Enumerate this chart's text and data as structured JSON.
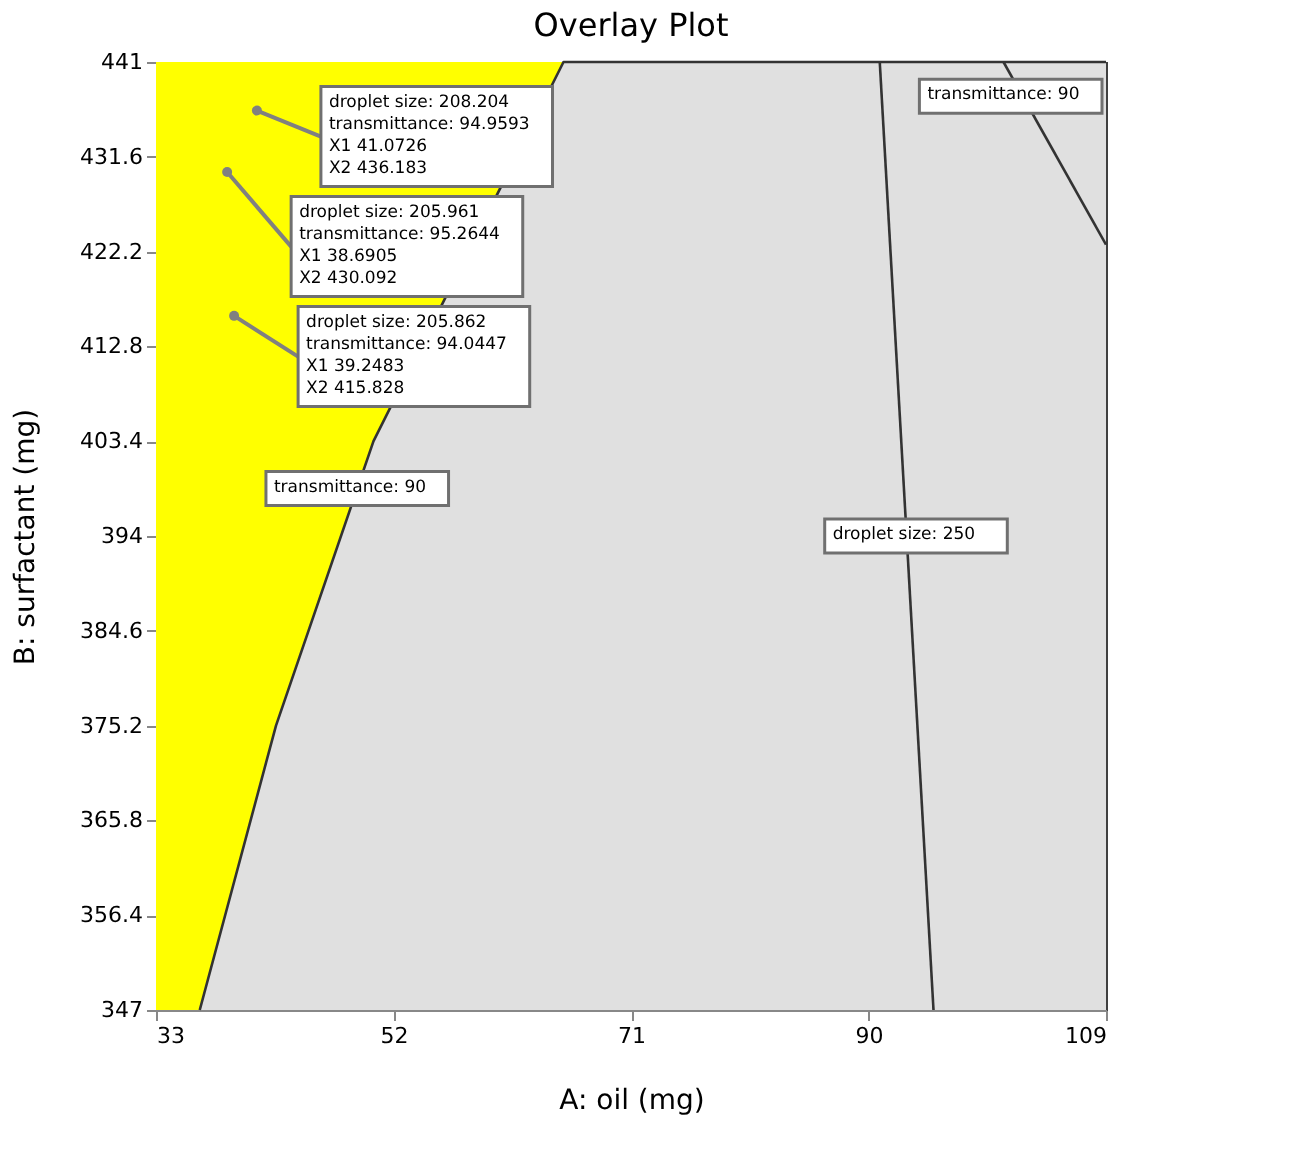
{
  "chart_data": {
    "type": "area",
    "title": "Overlay Plot",
    "xlabel": "A: oil (mg)",
    "ylabel": "B: surfactant (mg)",
    "xlim": [
      33,
      109
    ],
    "ylim": [
      347,
      441
    ],
    "xticks": [
      33,
      52,
      71,
      90,
      109
    ],
    "yticks": [
      347,
      356.4,
      365.8,
      375.2,
      384.6,
      394,
      403.4,
      412.8,
      422.2,
      431.6,
      441
    ],
    "grid": false,
    "bands": [
      {
        "axis": "x",
        "from": 33,
        "to": 109,
        "color": "#ffff00"
      }
    ],
    "series": [
      {
        "type": "area",
        "color": "#e0e0e0",
        "x": [
          36.5,
          42.6,
          50.4,
          65.6,
          109
        ],
        "values": [
          347,
          375.2,
          403.4,
          441,
          441
        ]
      },
      {
        "type": "line",
        "color": "#333333",
        "x": [
          100.8,
          109
        ],
        "values": [
          441,
          422.9
        ]
      },
      {
        "type": "line",
        "color": "#333333",
        "x": [
          90.9,
          95.2
        ],
        "values": [
          441,
          347
        ]
      },
      {
        "type": "scatter",
        "color": "#808080",
        "x": [
          41.0726,
          38.6905,
          39.2483
        ],
        "values": [
          436.183,
          430.092,
          415.828
        ]
      }
    ],
    "annotations": [
      {
        "text": "droplet size: 208.204\ntransmittance: 94.9593\nX1 41.0726\nX2 436.183",
        "x": 41.0726,
        "y": 436.183
      },
      {
        "text": "droplet size: 205.961\ntransmittance: 95.2644\nX1 38.6905\nX2 430.092",
        "x": 38.6905,
        "y": 430.092
      },
      {
        "text": "droplet size: 205.862\ntransmittance: 94.0447\nX1 39.2483\nX2 415.828",
        "x": 39.2483,
        "y": 415.828
      },
      {
        "text": "transmittance: 90",
        "x": 49.1,
        "y": 398.7
      },
      {
        "text": "droplet size: 250",
        "x": 93.8,
        "y": 394
      },
      {
        "text": "transmittance: 90",
        "x": 102.3,
        "y": 437.6
      }
    ]
  }
}
